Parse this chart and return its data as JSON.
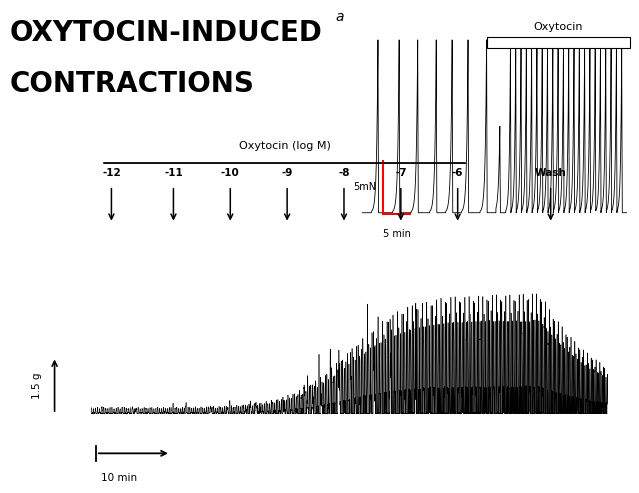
{
  "title_line1": "OXYTOCIN-INDUCED",
  "title_line2": "CONTRACTIONS",
  "title_fontsize": 20,
  "title_fontweight": "bold",
  "bg_color": "#ffffff",
  "panel_a_label": "a",
  "oxytocin_label": "Oxytocin",
  "scale_bar_label_y": "5mN",
  "scale_bar_label_x": "5 min",
  "bottom_xlabel": "Oxytocin (log M)",
  "bottom_doses": [
    "-12",
    "-11",
    "-10",
    "-9",
    "-8",
    "-7",
    "-6"
  ],
  "bottom_wash": "Wash",
  "bottom_yscale": "1.5 g",
  "bottom_xscale": "10 min",
  "trace_color": "#000000",
  "red_color": "#ff0000"
}
